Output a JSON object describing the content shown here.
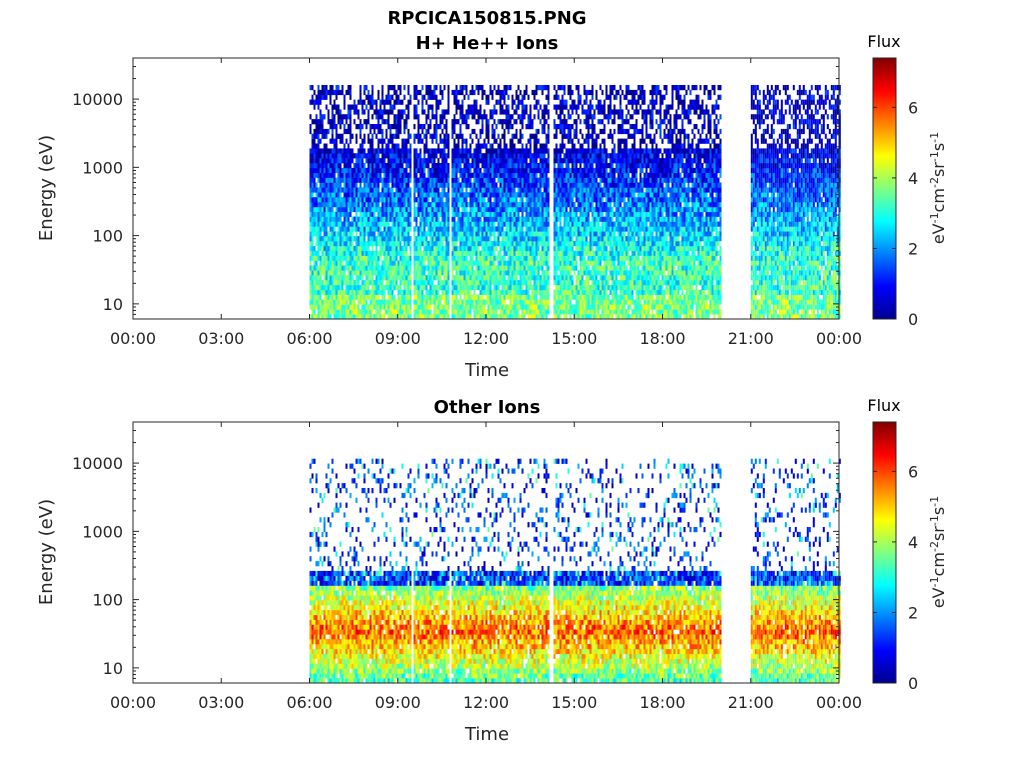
{
  "figure_title": "RPCICA150815.PNG",
  "chart_data": [
    {
      "type": "heatmap",
      "title": "H+ He++ Ions",
      "xlabel": "Time",
      "ylabel": "Energy (eV)",
      "yscale": "log",
      "ylim": [
        6,
        40000
      ],
      "x_ticks": [
        "00:00",
        "03:00",
        "06:00",
        "09:00",
        "12:00",
        "15:00",
        "18:00",
        "21:00",
        "00:00"
      ],
      "y_ticks": [
        {
          "value": 10,
          "label": "10"
        },
        {
          "value": 100,
          "label": "100"
        },
        {
          "value": 1000,
          "label": "1000"
        },
        {
          "value": 10000,
          "label": "10000"
        }
      ],
      "data_intervals_hours": [
        [
          6.0,
          19.95
        ],
        [
          21.0,
          24.0
        ]
      ],
      "dropouts_hours": [
        9.45,
        10.75,
        14.2
      ],
      "energy_cutoff_ev": 16000,
      "low_energy_peak_ev": 40,
      "colorbar": {
        "label": "Flux",
        "unit": "eV-1cm-2sr-1s-1",
        "range": [
          0,
          7.4
        ],
        "ticks": [
          "0",
          "2",
          "4",
          "6"
        ]
      }
    },
    {
      "type": "heatmap",
      "title": "Other Ions",
      "xlabel": "Time",
      "ylabel": "Energy (eV)",
      "yscale": "log",
      "ylim": [
        6,
        40000
      ],
      "x_ticks": [
        "00:00",
        "03:00",
        "06:00",
        "09:00",
        "12:00",
        "15:00",
        "18:00",
        "21:00",
        "00:00"
      ],
      "y_ticks": [
        {
          "value": 10,
          "label": "10"
        },
        {
          "value": 100,
          "label": "100"
        },
        {
          "value": 1000,
          "label": "1000"
        },
        {
          "value": 10000,
          "label": "10000"
        }
      ],
      "data_intervals_hours": [
        [
          6.0,
          19.95
        ],
        [
          21.0,
          24.0
        ]
      ],
      "dropouts_hours": [
        9.45,
        10.75,
        14.2
      ],
      "energy_cutoff_ev": 11000,
      "low_energy_peak_ev": 35,
      "colorbar": {
        "label": "Flux",
        "unit": "eV-1cm-2sr-1s-1",
        "range": [
          0,
          7.4
        ],
        "ticks": [
          "0",
          "2",
          "4",
          "6"
        ]
      }
    }
  ],
  "colors": {
    "jet": [
      "#00008f",
      "#0000ff",
      "#0080ff",
      "#00ffff",
      "#80ff80",
      "#ffff00",
      "#ff8000",
      "#ff0000",
      "#800000"
    ],
    "axis": "#262626",
    "background": "#ffffff"
  }
}
